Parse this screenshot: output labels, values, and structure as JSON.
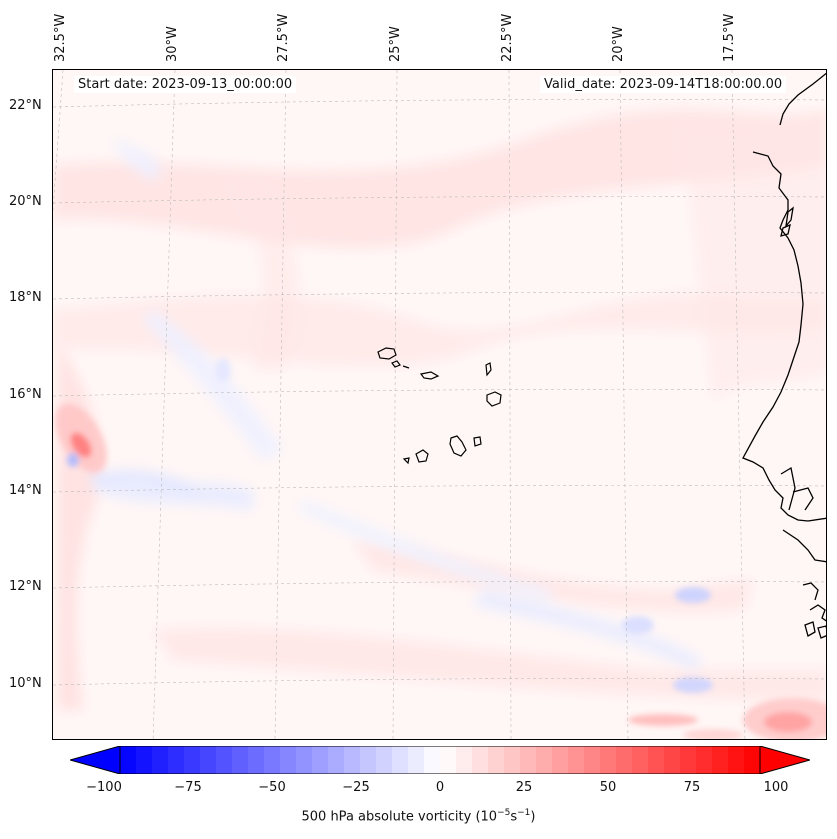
{
  "header": {
    "start_date": "Start date: 2023-09-13_00:00:00",
    "valid_date": "Valid_date: 2023-09-14T18:00:00.00"
  },
  "axes": {
    "longitude_labels": [
      "32.5°W",
      "30°W",
      "27.5°W",
      "25°W",
      "22.5°W",
      "20°W",
      "17.5°W"
    ],
    "latitude_labels": [
      "22°N",
      "20°N",
      "18°N",
      "16°N",
      "14°N",
      "12°N",
      "10°N"
    ]
  },
  "colorbar": {
    "label_main": "500 hPa absolute vorticity (10",
    "label_exp1": "−5",
    "label_mid": "s",
    "label_exp2": "−1",
    "label_end": ")",
    "ticks": [
      "−100",
      "−75",
      "−50",
      "−25",
      "0",
      "25",
      "50",
      "75",
      "100"
    ],
    "min": -100,
    "max": 100,
    "negative_color": "#0000ff",
    "positive_color": "#ff0000"
  },
  "map": {
    "features": [
      "coastline-africa",
      "cape-verde-islands"
    ],
    "background_color": "#fff8f7"
  }
}
